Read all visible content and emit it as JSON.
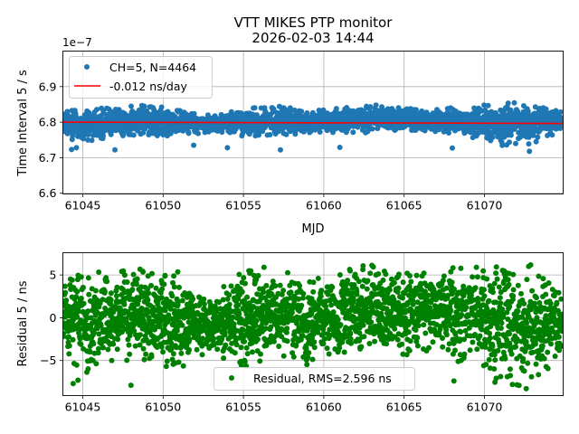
{
  "figure": {
    "title_line1": "VTT MIKES PTP monitor",
    "title_line2": "2026-02-03 14:44"
  },
  "chart_data": [
    {
      "type": "scatter",
      "panel": "top",
      "title": "VTT MIKES PTP monitor\n2026-02-03 14:44",
      "xlabel": "MJD",
      "ylabel": "Time Interval 5 / s",
      "y_offset_label": "1e−7",
      "xlim": [
        61043.76,
        61074.9
      ],
      "ylim": [
        6.598,
        7.0
      ],
      "y_scale_factor": 1e-07,
      "xticks": [
        61045,
        61050,
        61055,
        61060,
        61065,
        61070
      ],
      "xtick_labels": [
        "61045",
        "61050",
        "61055",
        "61060",
        "61065",
        "61070"
      ],
      "yticks": [
        6.6,
        6.7,
        6.8,
        6.9
      ],
      "ytick_labels": [
        "6.6",
        "6.7",
        "6.8",
        "6.9"
      ],
      "grid": true,
      "legend_position": "top-left",
      "series": [
        {
          "name": "CH=5, N=4464",
          "kind": "points",
          "color": "#1f77b4",
          "n_points": 4464,
          "center": 6.798,
          "typical_spread": 0.03,
          "envelope": {
            "x": [
              61043.8,
              61045,
              61047,
              61049,
              61051,
              61053,
              61055,
              61057,
              61059,
              61061,
              61063,
              61065,
              61067,
              61069,
              61071,
              61073,
              61074.9
            ],
            "upper": [
              6.83,
              6.84,
              6.84,
              6.85,
              6.84,
              6.82,
              6.84,
              6.85,
              6.83,
              6.84,
              6.85,
              6.84,
              6.84,
              6.84,
              6.86,
              6.85,
              6.84
            ],
            "lower": [
              6.76,
              6.74,
              6.76,
              6.76,
              6.76,
              6.77,
              6.76,
              6.76,
              6.77,
              6.77,
              6.77,
              6.77,
              6.77,
              6.76,
              6.73,
              6.74,
              6.77
            ]
          },
          "outliers": [
            {
              "x": 61044.3,
              "y": 6.723
            },
            {
              "x": 61044.6,
              "y": 6.728
            },
            {
              "x": 61047.0,
              "y": 6.722
            },
            {
              "x": 61051.9,
              "y": 6.735
            },
            {
              "x": 61054.0,
              "y": 6.728
            },
            {
              "x": 61057.3,
              "y": 6.722
            },
            {
              "x": 61061.0,
              "y": 6.729
            },
            {
              "x": 61068.0,
              "y": 6.727
            },
            {
              "x": 61072.8,
              "y": 6.718
            }
          ]
        },
        {
          "name": "-0.012 ns/day",
          "kind": "line",
          "color": "#ff0000",
          "x": [
            61043.76,
            61074.9
          ],
          "y": [
            6.8001,
            6.7964
          ]
        }
      ]
    },
    {
      "type": "scatter",
      "panel": "bottom",
      "xlabel": "",
      "ylabel": "Residual 5 / ns",
      "xlim": [
        61043.76,
        61074.9
      ],
      "ylim": [
        -9.1,
        7.6
      ],
      "xticks": [
        61045,
        61050,
        61055,
        61060,
        61065,
        61070
      ],
      "xtick_labels": [
        "61045",
        "61050",
        "61055",
        "61060",
        "61065",
        "61070"
      ],
      "yticks": [
        -5,
        0,
        5
      ],
      "ytick_labels": [
        "−5",
        "0",
        "5"
      ],
      "grid": true,
      "legend_position": "bottom-center",
      "series": [
        {
          "name": "Residual, RMS=2.596 ns",
          "kind": "points",
          "color": "#008000",
          "n_points": 4464,
          "rms": 2.596,
          "envelope": {
            "x": [
              61043.8,
              61045,
              61047,
              61049,
              61051,
              61053,
              61055,
              61057,
              61059,
              61061,
              61063,
              61065,
              61067,
              61069,
              61071,
              61073,
              61074.9
            ],
            "upper": [
              4.0,
              6.3,
              6.0,
              6.2,
              5.5,
              2.5,
              5.8,
              6.0,
              4.5,
              5.5,
              6.5,
              5.5,
              5.5,
              6.7,
              6.5,
              6.2,
              4.0
            ],
            "lower": [
              -4.0,
              -7.3,
              -5.5,
              -5.5,
              -6.0,
              -4.0,
              -6.0,
              -5.0,
              -5.5,
              -4.0,
              -4.5,
              -4.5,
              -4.0,
              -6.0,
              -8.0,
              -8.3,
              -4.0
            ]
          },
          "outliers": [
            {
              "x": 61044.4,
              "y": -7.7
            },
            {
              "x": 61044.7,
              "y": -7.3
            },
            {
              "x": 61048.0,
              "y": -7.9
            },
            {
              "x": 61068.1,
              "y": -7.4
            },
            {
              "x": 61072.6,
              "y": -8.3
            }
          ]
        }
      ]
    }
  ]
}
